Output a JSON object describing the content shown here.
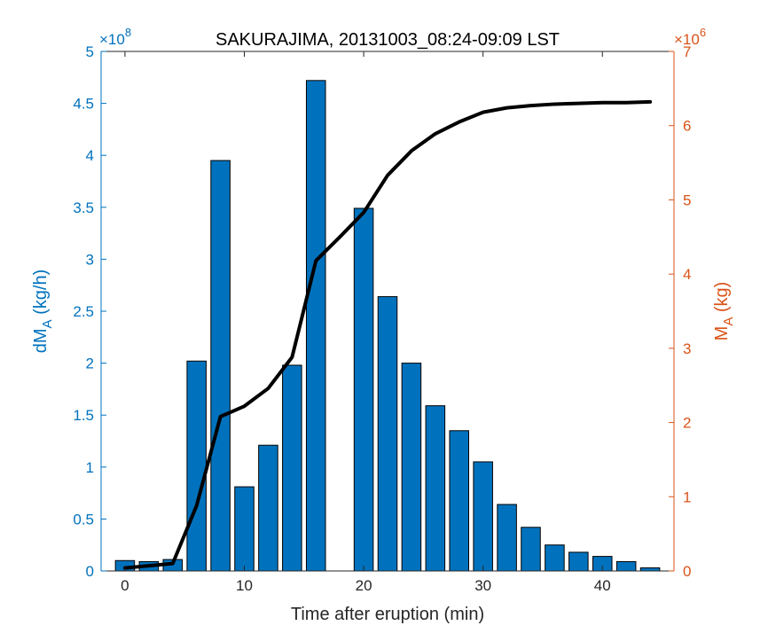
{
  "colors": {
    "left_axis": "#0072BD",
    "right_axis": "#D95319",
    "bar_fill": "#0072BD",
    "bar_edge": "#000000",
    "line": "#000000",
    "axis": "#262626"
  },
  "chart_data": {
    "type": "bar",
    "title": "SAKURAJIMA, 20131003_08:24-09:09 LST",
    "xlabel": "Time after eruption (min)",
    "xlim": [
      -2,
      46
    ],
    "x_ticks": [
      "0",
      "10",
      "20",
      "30",
      "40"
    ],
    "x_tick_values": [
      0,
      10,
      20,
      30,
      40
    ],
    "y_left": {
      "label_main": "dM",
      "label_sub": "A",
      "label_unit": " (kg/h)",
      "exponent_base": "×10",
      "exponent": "8",
      "lim": [
        0,
        5
      ],
      "ticks": [
        "0",
        "0.5",
        "1",
        "1.5",
        "2",
        "2.5",
        "3",
        "3.5",
        "4",
        "4.5",
        "5"
      ],
      "tick_values": [
        0,
        0.5,
        1,
        1.5,
        2,
        2.5,
        3,
        3.5,
        4,
        4.5,
        5
      ]
    },
    "y_right": {
      "label_main": "M",
      "label_sub": "A",
      "label_unit": " (kg)",
      "exponent_base": "×10",
      "exponent": "6",
      "lim": [
        0,
        7
      ],
      "ticks": [
        "0",
        "1",
        "2",
        "3",
        "4",
        "5",
        "6",
        "7"
      ],
      "tick_values": [
        0,
        1,
        2,
        3,
        4,
        5,
        6,
        7
      ]
    },
    "series": [
      {
        "type": "bar",
        "axis": "left",
        "x": [
          0,
          2,
          4,
          6,
          8,
          10,
          12,
          14,
          16,
          18,
          20,
          22,
          24,
          26,
          28,
          30,
          32,
          34,
          36,
          38,
          40,
          42,
          44
        ],
        "values": [
          0.1,
          0.09,
          0.11,
          2.02,
          3.95,
          0.81,
          1.21,
          1.98,
          4.72,
          0.0,
          3.49,
          2.64,
          2.0,
          1.59,
          1.35,
          1.05,
          0.64,
          0.42,
          0.25,
          0.18,
          0.14,
          0.09,
          0.03
        ]
      },
      {
        "type": "line",
        "axis": "right",
        "x": [
          0,
          2,
          4,
          6,
          8,
          10,
          12,
          14,
          16,
          18,
          20,
          22,
          24,
          26,
          28,
          30,
          32,
          34,
          36,
          38,
          40,
          42,
          44
        ],
        "values": [
          0.04,
          0.07,
          0.1,
          0.88,
          2.08,
          2.22,
          2.46,
          2.88,
          4.18,
          4.5,
          4.83,
          5.33,
          5.66,
          5.89,
          6.05,
          6.18,
          6.24,
          6.27,
          6.29,
          6.3,
          6.31,
          6.31,
          6.32
        ]
      }
    ]
  }
}
